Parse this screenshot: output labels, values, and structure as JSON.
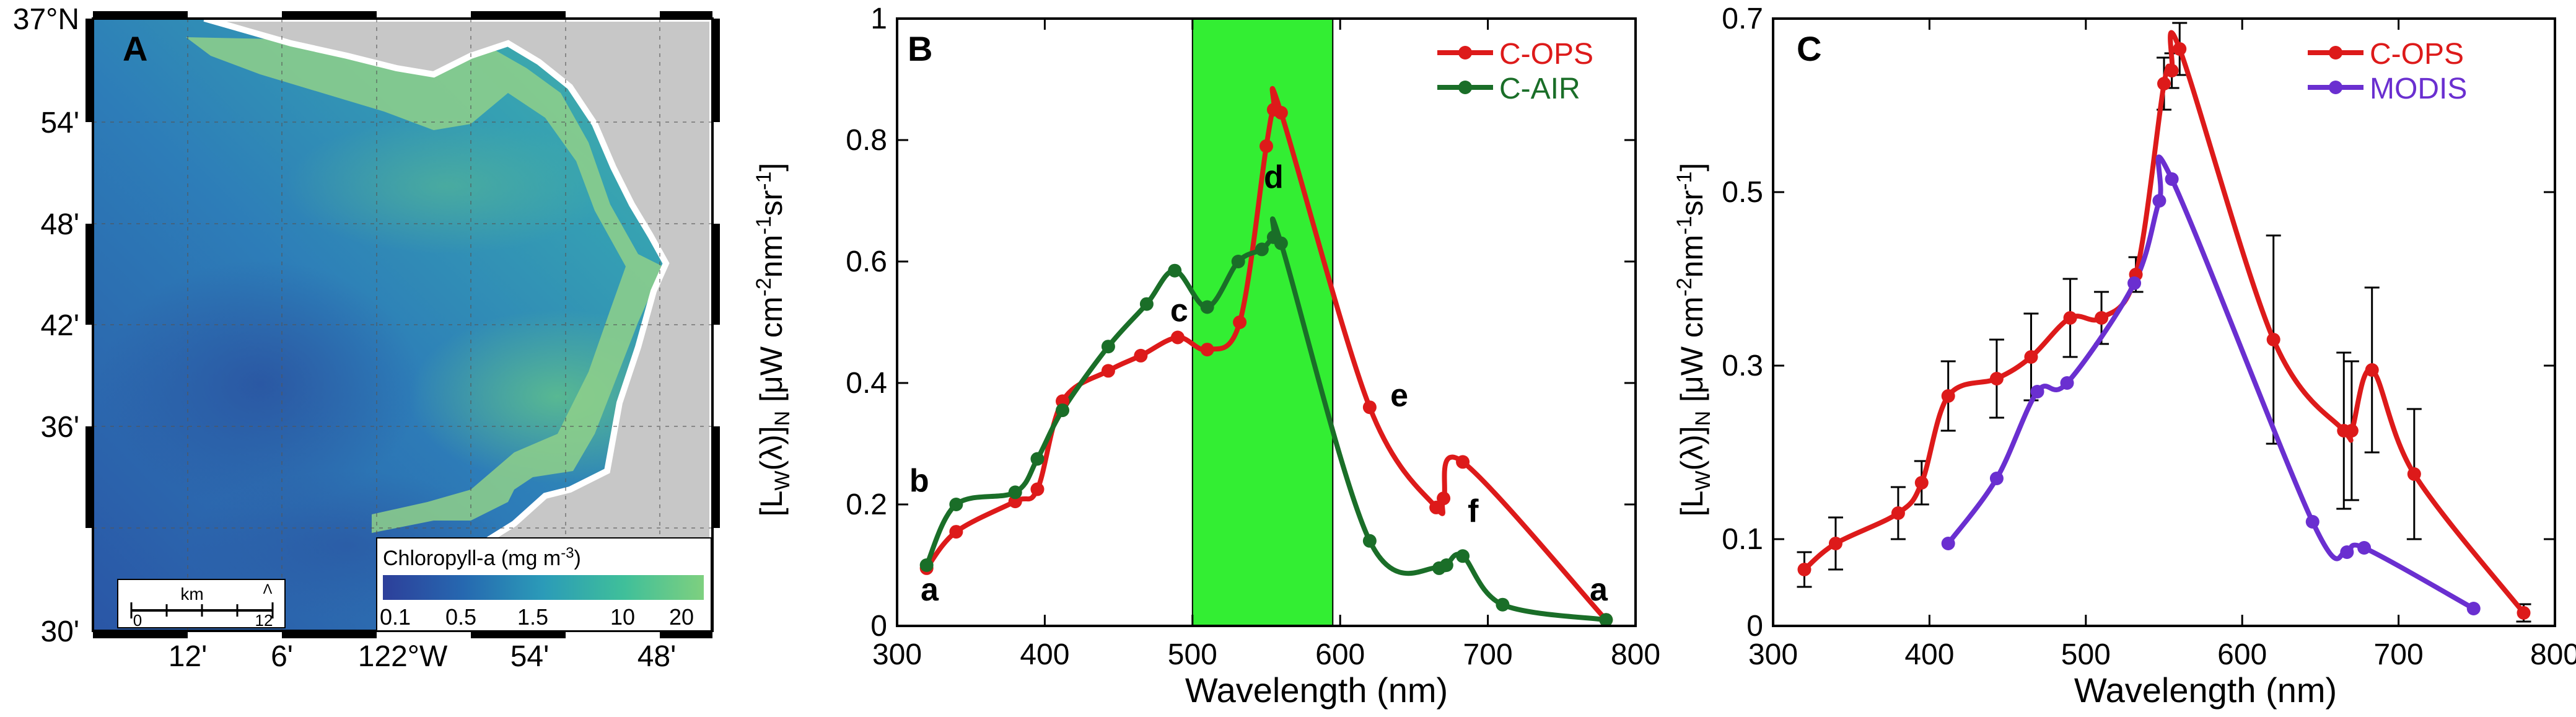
{
  "map": {
    "panel_label": "A",
    "lat_labels": [
      "37°N",
      "54'",
      "48'",
      "42'",
      "36'",
      "30'"
    ],
    "lon_labels": [
      "12'",
      "6'",
      "122°W",
      "54'",
      "48'"
    ],
    "colorbar": {
      "title": "Chloropyll-a (mg m",
      "title_sup": "-3",
      "title_end": ")",
      "ticks": [
        "0.1",
        "0.5",
        "1.5",
        "10",
        "20"
      ]
    },
    "scalebar": {
      "label": "km",
      "start": "0",
      "end": "12"
    },
    "colors": {
      "ocean_low": "#2a5aa8",
      "ocean_mid": "#2f86b8",
      "ocean_high": "#3fb59a",
      "coastal": "#9ad48a",
      "land": "#c7c7c7"
    }
  },
  "chart_data": [
    {
      "type": "line",
      "panel_label": "B",
      "xlabel": "Wavelength (nm)",
      "ylabel": "[L_W(λ)]_N [μW cm^-2 nm^-1 sr^-1]",
      "xlim": [
        300,
        800
      ],
      "ylim": [
        0,
        1
      ],
      "xticks": [
        "300",
        "400",
        "500",
        "600",
        "700",
        "800"
      ],
      "yticks": [
        "0",
        "0.2",
        "0.4",
        "0.6",
        "0.8",
        "1"
      ],
      "highlight_band": [
        500,
        595
      ],
      "highlight_color": "#33ee33",
      "series": [
        {
          "name": "C-OPS",
          "color": "#dd1a1a",
          "x": [
            320,
            340,
            380,
            395,
            412,
            443,
            465,
            490,
            510,
            532,
            550,
            555,
            560,
            620,
            665,
            670,
            683,
            780
          ],
          "y": [
            0.095,
            0.155,
            0.205,
            0.225,
            0.37,
            0.42,
            0.445,
            0.475,
            0.455,
            0.5,
            0.79,
            0.85,
            0.845,
            0.36,
            0.195,
            0.21,
            0.27,
            0.01
          ]
        },
        {
          "name": "C-AIR",
          "color": "#1a6e28",
          "x": [
            320,
            340,
            380,
            395,
            412,
            443,
            469,
            488,
            510,
            531,
            547,
            555,
            560,
            620,
            667,
            672,
            683,
            710,
            780
          ],
          "y": [
            0.1,
            0.2,
            0.22,
            0.275,
            0.355,
            0.46,
            0.53,
            0.585,
            0.525,
            0.6,
            0.62,
            0.64,
            0.63,
            0.14,
            0.095,
            0.1,
            0.115,
            0.035,
            0.01
          ]
        }
      ],
      "annotations": [
        {
          "text": "a",
          "x": 322,
          "y": 0.06
        },
        {
          "text": "b",
          "x": 315,
          "y": 0.24
        },
        {
          "text": "c",
          "x": 491,
          "y": 0.52
        },
        {
          "text": "d",
          "x": 555,
          "y": 0.74
        },
        {
          "text": "e",
          "x": 640,
          "y": 0.38
        },
        {
          "text": "f",
          "x": 690,
          "y": 0.19
        },
        {
          "text": "a",
          "x": 775,
          "y": 0.06
        }
      ]
    },
    {
      "type": "line",
      "panel_label": "C",
      "xlabel": "Wavelength (nm)",
      "ylabel": "[L_W(λ)]_N [μW cm^-2 nm^-1 sr^-1]",
      "xlim": [
        300,
        800
      ],
      "ylim": [
        0,
        0.7
      ],
      "xticks": [
        "300",
        "400",
        "500",
        "600",
        "700",
        "800"
      ],
      "yticks": [
        "0",
        "0.1",
        "0.3",
        "0.5",
        "0.7"
      ],
      "series": [
        {
          "name": "C-OPS",
          "color": "#dd1a1a",
          "x": [
            320,
            340,
            380,
            395,
            412,
            443,
            465,
            490,
            510,
            532,
            550,
            555,
            560,
            620,
            665,
            670,
            683,
            710,
            780
          ],
          "y": [
            0.065,
            0.095,
            0.13,
            0.165,
            0.265,
            0.285,
            0.31,
            0.355,
            0.355,
            0.405,
            0.625,
            0.64,
            0.665,
            0.33,
            0.225,
            0.225,
            0.295,
            0.175,
            0.015
          ],
          "err": [
            0.02,
            0.03,
            0.03,
            0.025,
            0.04,
            0.045,
            0.05,
            0.045,
            0.03,
            0.02,
            0.03,
            0.02,
            0.03,
            0.12,
            0.09,
            0.08,
            0.095,
            0.075,
            0.01
          ]
        },
        {
          "name": "MODIS",
          "color": "#6a2fd0",
          "x": [
            412,
            443,
            469,
            488,
            531,
            547,
            555,
            645,
            667,
            678,
            748
          ],
          "y": [
            0.095,
            0.17,
            0.27,
            0.28,
            0.395,
            0.49,
            0.515,
            0.12,
            0.085,
            0.09,
            0.02
          ]
        }
      ]
    }
  ]
}
